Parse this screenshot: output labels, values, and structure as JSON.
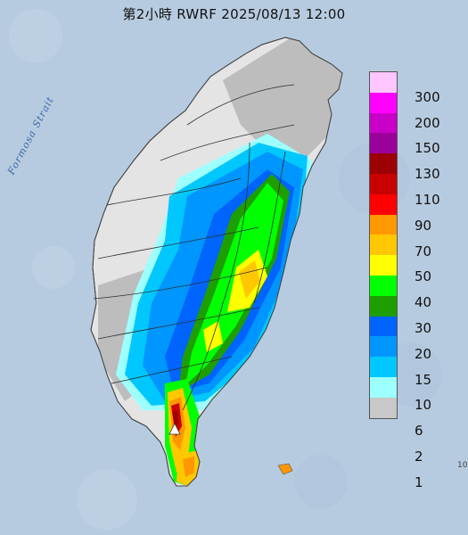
{
  "title": "第2小時  RWRF 2025/08/13 12:00",
  "map_label": "Formosa Strait",
  "edge_note": "10",
  "colors": {
    "sea": "#b7cbe0",
    "land_dry": "#e4e4e4",
    "mountain_gray": "#bdbdbd",
    "river": "#303030"
  },
  "legend": {
    "colors": [
      "#ffc6ff",
      "#ff00ff",
      "#c800c8",
      "#9a009a",
      "#9c0000",
      "#c80000",
      "#ff0000",
      "#ff9800",
      "#ffc800",
      "#ffff00",
      "#00ff00",
      "#1e9e00",
      "#0064ff",
      "#0096ff",
      "#00c8ff",
      "#9effff",
      "#c8c8c8"
    ],
    "labels": [
      "300",
      "200",
      "150",
      "130",
      "110",
      "90",
      "70",
      "50",
      "40",
      "30",
      "20",
      "15",
      "10",
      "6",
      "2",
      "1"
    ]
  }
}
